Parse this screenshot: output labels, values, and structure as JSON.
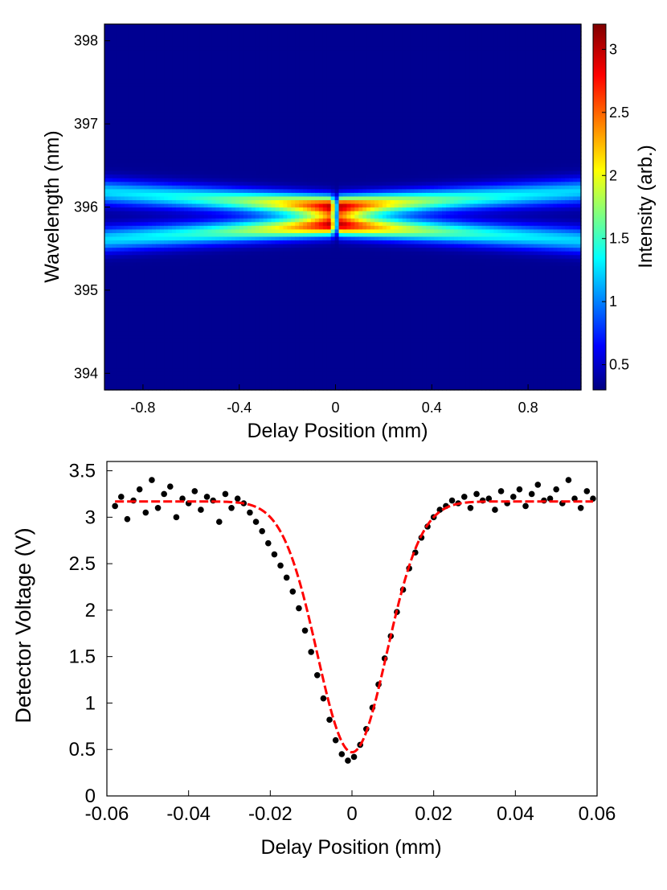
{
  "chart_data": [
    {
      "type": "heatmap",
      "title": "",
      "xlabel": "Delay Position (mm)",
      "ylabel": "Wavelength (nm)",
      "colorbar_label": "Intensity (arb.)",
      "xlim": [
        -0.96,
        1.02
      ],
      "ylim": [
        393.8,
        398.2
      ],
      "x_ticks": [
        -0.8,
        -0.4,
        0,
        0.4,
        0.8
      ],
      "x_tick_labels": [
        "-0.8",
        "-0.4",
        "0",
        "0.4",
        "0.8"
      ],
      "y_ticks": [
        394,
        395,
        396,
        397,
        398
      ],
      "y_tick_labels": [
        "394",
        "395",
        "396",
        "397",
        "398"
      ],
      "colorbar_range": [
        0.3,
        3.2
      ],
      "colorbar_ticks": [
        0.5,
        1,
        1.5,
        2,
        2.5,
        3
      ],
      "colorbar_tick_labels": [
        "0.5",
        "1",
        "1.5",
        "2",
        "2.5",
        "3"
      ],
      "colormap": "jet",
      "center_wavelength_nm": 395.9,
      "peak_intensity": 3.1,
      "background_intensity": 0.35,
      "band_description": "two spectral lines that split symmetrically away from 395.9 nm with increasing |delay|, merging at zero delay"
    },
    {
      "type": "scatter",
      "title": "",
      "xlabel": "Delay Position (mm)",
      "ylabel": "Detector Voltage (V)",
      "xlim": [
        -0.06,
        0.06
      ],
      "ylim": [
        0,
        3.6
      ],
      "x_ticks": [
        -0.06,
        -0.04,
        -0.02,
        0,
        0.02,
        0.04,
        0.06
      ],
      "x_tick_labels": [
        "-0.06",
        "-0.04",
        "-0.02",
        "0",
        "0.02",
        "0.04",
        "0.06"
      ],
      "y_ticks": [
        0,
        0.5,
        1,
        1.5,
        2,
        2.5,
        3,
        3.5
      ],
      "y_tick_labels": [
        "0",
        "0.5",
        "1",
        "1.5",
        "2",
        "2.5",
        "3",
        "3.5"
      ],
      "series": [
        {
          "name": "measured",
          "style": "black dots",
          "x": [
            -0.058,
            -0.0565,
            -0.055,
            -0.0535,
            -0.052,
            -0.0505,
            -0.049,
            -0.0475,
            -0.046,
            -0.0445,
            -0.043,
            -0.0415,
            -0.04,
            -0.0385,
            -0.037,
            -0.0355,
            -0.034,
            -0.0325,
            -0.031,
            -0.0295,
            -0.028,
            -0.0265,
            -0.025,
            -0.0235,
            -0.022,
            -0.0205,
            -0.019,
            -0.0175,
            -0.016,
            -0.0145,
            -0.013,
            -0.0115,
            -0.01,
            -0.0085,
            -0.007,
            -0.0055,
            -0.004,
            -0.0025,
            -0.001,
            0.0005,
            0.002,
            0.0035,
            0.005,
            0.0065,
            0.008,
            0.0095,
            0.011,
            0.0125,
            0.014,
            0.0155,
            0.017,
            0.0185,
            0.02,
            0.0215,
            0.023,
            0.0245,
            0.026,
            0.0275,
            0.029,
            0.0305,
            0.032,
            0.0335,
            0.035,
            0.0365,
            0.038,
            0.0395,
            0.041,
            0.0425,
            0.044,
            0.0455,
            0.047,
            0.0485,
            0.05,
            0.0515,
            0.053,
            0.0545,
            0.056,
            0.0575,
            0.059
          ],
          "y": [
            3.12,
            3.22,
            2.98,
            3.18,
            3.3,
            3.05,
            3.4,
            3.1,
            3.25,
            3.33,
            3.0,
            3.2,
            3.15,
            3.28,
            3.08,
            3.22,
            3.18,
            2.95,
            3.25,
            3.1,
            3.2,
            3.15,
            3.05,
            2.95,
            2.85,
            2.72,
            2.6,
            2.48,
            2.35,
            2.2,
            2.02,
            1.78,
            1.55,
            1.3,
            1.05,
            0.82,
            0.6,
            0.45,
            0.38,
            0.42,
            0.55,
            0.72,
            0.95,
            1.2,
            1.48,
            1.72,
            1.98,
            2.22,
            2.45,
            2.62,
            2.78,
            2.9,
            3.0,
            3.08,
            3.12,
            3.18,
            3.15,
            3.22,
            3.1,
            3.25,
            3.18,
            3.2,
            3.08,
            3.28,
            3.15,
            3.22,
            3.3,
            3.12,
            3.25,
            3.35,
            3.18,
            3.2,
            3.3,
            3.15,
            3.4,
            3.2,
            3.1,
            3.28,
            3.2
          ]
        },
        {
          "name": "fit",
          "style": "red dashed line",
          "model": "baseline - depth * exp(-(x - x0)^2 / (2 * sigma^2))",
          "baseline": 3.17,
          "depth": 2.7,
          "x0": 0,
          "sigma": 0.0085
        }
      ]
    }
  ]
}
